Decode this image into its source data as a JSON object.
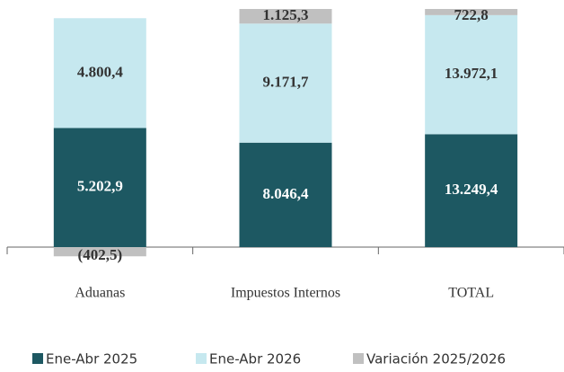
{
  "chart_data": {
    "type": "bar",
    "stacked": "percent",
    "categories": [
      "Aduanas",
      "Impuestos Internos",
      "TOTAL"
    ],
    "series": [
      {
        "name": "Ene-Abr 2025",
        "color": "#1d5862",
        "label_color": "#ffffff",
        "values": [
          5202.9,
          8046.4,
          13249.4
        ],
        "value_labels": [
          "5.202,9",
          "8.046,4",
          "13.249,4"
        ]
      },
      {
        "name": "Ene-Abr 2026",
        "color": "#c6e8ef",
        "label_color": "#333333",
        "values": [
          4800.4,
          9171.7,
          13972.1
        ],
        "value_labels": [
          "4.800,4",
          "9.171,7",
          "13.972,1"
        ]
      },
      {
        "name": "Variación 2025/2026",
        "color": "#c0c0c0",
        "label_color": "#333333",
        "values": [
          -402.5,
          1125.3,
          722.8
        ],
        "value_labels": [
          "(402,5)",
          "1.125,3",
          "722,8"
        ]
      }
    ]
  }
}
